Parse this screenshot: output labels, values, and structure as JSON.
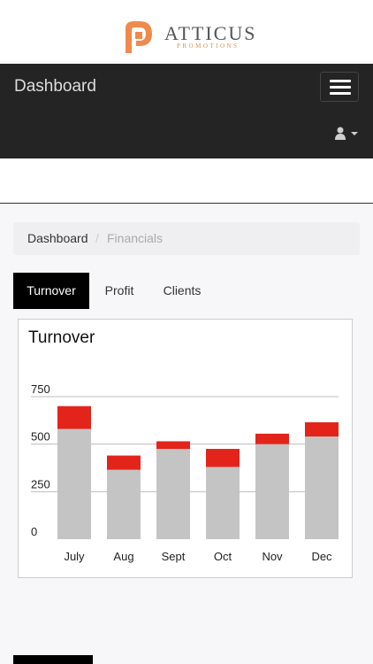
{
  "brand": {
    "name": "ATTICUS",
    "tagline": "PROMOTIONS",
    "accent_color": "#f0894c"
  },
  "navbar": {
    "title": "Dashboard",
    "menu_icon": "hamburger-menu-icon",
    "user_icon": "user-icon",
    "background": "#242424"
  },
  "breadcrumb": {
    "items": [
      "Dashboard",
      "Financials"
    ],
    "separator": "/"
  },
  "tabs": [
    {
      "label": "Turnover",
      "active": true
    },
    {
      "label": "Profit",
      "active": false
    },
    {
      "label": "Clients",
      "active": false
    }
  ],
  "panel": {
    "title": "Turnover"
  },
  "chart_data": {
    "type": "bar",
    "stacked": true,
    "categories": [
      "July",
      "Aug",
      "Sept",
      "Oct",
      "Nov",
      "Dec"
    ],
    "series": [
      {
        "color": "#c4c4c4",
        "values": [
          580,
          365,
          475,
          380,
          500,
          540
        ]
      },
      {
        "color": "#e3241b",
        "values": [
          120,
          75,
          40,
          95,
          55,
          75
        ]
      }
    ],
    "yticks": [
      0,
      250,
      500,
      750
    ],
    "ylim": [
      0,
      750
    ],
    "grid": true
  }
}
